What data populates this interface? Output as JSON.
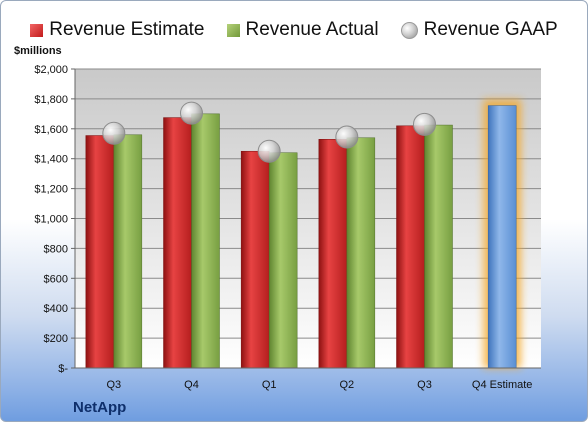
{
  "legend": {
    "estimate": "Revenue Estimate",
    "actual": "Revenue Actual",
    "gaap": "Revenue GAAP"
  },
  "brand": "NetApp",
  "colors": {
    "estimate": "#d32a2a",
    "actual": "#8aad4e",
    "gaap": "#b8b8b8",
    "forecast": "#6a9bd8",
    "glow": "#f5a623"
  },
  "chart_data": {
    "type": "bar",
    "ylabel": "$millions",
    "ylim": [
      0,
      2000
    ],
    "yticks": [
      0,
      200,
      400,
      600,
      800,
      1000,
      1200,
      1400,
      1600,
      1800,
      2000
    ],
    "ytick_labels": [
      "$-",
      "$200",
      "$400",
      "$600",
      "$800",
      "$1,000",
      "$1,200",
      "$1,400",
      "$1,600",
      "$1,800",
      "$2,000"
    ],
    "categories": [
      "Q3",
      "Q4",
      "Q1",
      "Q2",
      "Q3",
      "Q4 Estimate"
    ],
    "grid": true,
    "legend_position": "top",
    "series": [
      {
        "name": "Revenue Estimate",
        "values": [
          1555,
          1675,
          1450,
          1530,
          1620,
          1755
        ]
      },
      {
        "name": "Revenue Actual",
        "values": [
          1560,
          1700,
          1440,
          1540,
          1625,
          null
        ]
      },
      {
        "name": "Revenue GAAP",
        "values": [
          1570,
          1705,
          1450,
          1545,
          1630,
          null
        ]
      }
    ]
  }
}
